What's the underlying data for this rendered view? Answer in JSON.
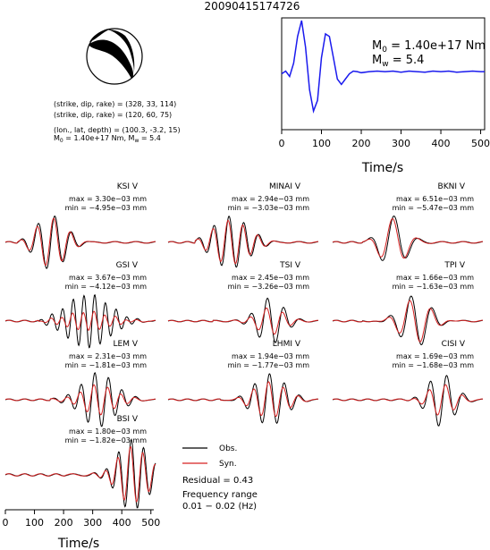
{
  "figure": {
    "title": "20090415174726",
    "mechanism_params": {
      "nodal_plane_1": "(strike, dip, rake) = (328, 33, 114)",
      "nodal_plane_2": "(strike, dip, rake) = (120, 60, 75)",
      "location": "(lon., lat, depth) = (100.3, -3.2, 15)",
      "m0_prefix": "M",
      "m0_sub": "0",
      "m0_text": " = 1.40e+17 Nm, M",
      "mw_sub": "w",
      "mw_text": " = 5.4"
    },
    "stf_labels": {
      "m0_prefix": "M",
      "m0_sub": "0",
      "m0_value": " = 1.40e+17 Nm",
      "mw_prefix": "M",
      "mw_sub": "w",
      "mw_value": " = 5.4"
    },
    "legend": {
      "obs": "Obs.",
      "syn": "Syn.",
      "obs_color": "#000000",
      "syn_color": "#d62020"
    },
    "residual": "Residual = 0.43",
    "freq_label": "Frequency range",
    "freq_value": "0.01 − 0.02 (Hz)"
  },
  "chart_data": [
    {
      "type": "line",
      "name": "source-time-function",
      "xlabel": "Time/s",
      "xlim": [
        0,
        510
      ],
      "xticks": [
        0,
        100,
        200,
        300,
        400,
        500
      ],
      "x": [
        0,
        10,
        20,
        30,
        40,
        50,
        60,
        70,
        80,
        90,
        100,
        110,
        120,
        130,
        140,
        150,
        160,
        170,
        180,
        190,
        200,
        220,
        240,
        260,
        280,
        300,
        320,
        340,
        360,
        380,
        400,
        420,
        440,
        460,
        480,
        500,
        510
      ],
      "y": [
        0,
        0.05,
        -0.05,
        0.2,
        0.7,
        1.0,
        0.5,
        -0.3,
        -0.7,
        -0.5,
        0.3,
        0.75,
        0.7,
        0.3,
        -0.1,
        -0.2,
        -0.1,
        0.0,
        0.05,
        0.04,
        0.02,
        0.04,
        0.05,
        0.04,
        0.05,
        0.03,
        0.05,
        0.04,
        0.03,
        0.05,
        0.04,
        0.05,
        0.03,
        0.04,
        0.05,
        0.04,
        0.04
      ],
      "ylim": [
        -1.05,
        1.05
      ],
      "color": "#1a1aee"
    },
    {
      "type": "line",
      "name": "waveform-panels",
      "xlabel": "Time/s",
      "xlim": [
        0,
        510
      ],
      "xticks": [
        0,
        100,
        200,
        300,
        400,
        500
      ],
      "stations": [
        {
          "name": "KSI V",
          "max": "max = 3.30e−03 mm",
          "min": "min = −4.95e−03 mm",
          "onset": 0.08,
          "center": 0.3,
          "width": 0.14,
          "freq": 9,
          "amp": 1.0,
          "syn_ratio": 0.9
        },
        {
          "name": "MINAI V",
          "max": "max = 2.94e−03 mm",
          "min": "min = −3.03e−03 mm",
          "onset": 0.18,
          "center": 0.42,
          "width": 0.16,
          "freq": 10,
          "amp": 1.0,
          "syn_ratio": 0.85
        },
        {
          "name": "BKNI V",
          "max": "max = 6.51e−03 mm",
          "min": "min = −5.47e−03 mm",
          "onset": 0.2,
          "center": 0.4,
          "width": 0.12,
          "freq": 6,
          "amp": 1.0,
          "syn_ratio": 0.9
        },
        {
          "name": "GSI V",
          "max": "max = 3.67e−03 mm",
          "min": "min = −4.12e−03 mm",
          "onset": 0.22,
          "center": 0.55,
          "width": 0.2,
          "freq": 14,
          "amp": 1.0,
          "syn_ratio": 0.35
        },
        {
          "name": "TSI V",
          "max": "max = 2.45e−03 mm",
          "min": "min = −3.26e−03 mm",
          "onset": 0.3,
          "center": 0.68,
          "width": 0.12,
          "freq": 9,
          "amp": 0.9,
          "syn_ratio": 0.6
        },
        {
          "name": "TPI V",
          "max": "max = 1.66e−03 mm",
          "min": "min = −1.63e−03 mm",
          "onset": 0.2,
          "center": 0.55,
          "width": 0.14,
          "freq": 7,
          "amp": 1.0,
          "syn_ratio": 0.85
        },
        {
          "name": "LEM V",
          "max": "max = 2.31e−03 mm",
          "min": "min = −1.81e−03 mm",
          "onset": 0.3,
          "center": 0.62,
          "width": 0.16,
          "freq": 11,
          "amp": 1.0,
          "syn_ratio": 0.55
        },
        {
          "name": "LHMI V",
          "max": "max = 1.94e−03 mm",
          "min": "min = −1.77e−03 mm",
          "onset": 0.35,
          "center": 0.68,
          "width": 0.14,
          "freq": 10,
          "amp": 1.0,
          "syn_ratio": 0.7
        },
        {
          "name": "CISI V",
          "max": "max = 1.69e−03 mm",
          "min": "min = −1.68e−03 mm",
          "onset": 0.4,
          "center": 0.72,
          "width": 0.12,
          "freq": 9,
          "amp": 1.0,
          "syn_ratio": 0.6
        },
        {
          "name": "BSI V",
          "max": "max = 1.80e−03 mm",
          "min": "min = −1.82e−03 mm",
          "onset": 0.4,
          "center": 0.85,
          "width": 0.14,
          "freq": 12,
          "amp": 1.0,
          "syn_ratio": 0.8
        }
      ]
    }
  ]
}
